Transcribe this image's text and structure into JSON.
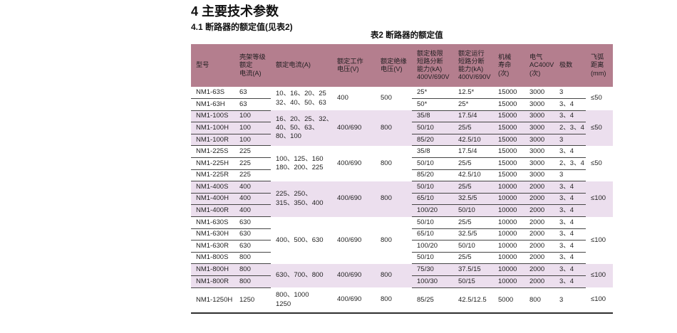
{
  "page": {
    "title": "4 主要技术参数",
    "subtitle": "4.1 断路器的额定值(见表2)",
    "table_caption": "表2 断路器的额定值"
  },
  "table": {
    "header_bg": "#b47e8e",
    "shade_bg": "#ecdfee",
    "columns": [
      "型号",
      "壳架等级\n额定\n电流(A)",
      "额定电流(A)",
      "额定工作\n电压(V)",
      "额定绝缘\n电压(V)",
      "额定极限\n短路分断\n能力(kA)\n400V/690V",
      "额定运行\n短路分断\n能力(kA)\n400V/690V",
      "机械\n寿命\n(次)",
      "电气\nAC400V\n(次)",
      "极数",
      "飞弧\n距离\n(mm)"
    ],
    "groups": [
      {
        "shade": false,
        "rated_current": "10、16、20、25\n32、40、50、63",
        "working_voltage": "400",
        "insulation_voltage": "500",
        "arc_distance": "≤50",
        "rows": [
          {
            "model": "NM1-63S",
            "frame": "63",
            "ultimate": "25*",
            "service": "12.5*",
            "mech": "15000",
            "elec": "3000",
            "poles": "3"
          },
          {
            "model": "NM1-63H",
            "frame": "63",
            "ultimate": "50*",
            "service": "25*",
            "mech": "15000",
            "elec": "3000",
            "poles": "3、4"
          }
        ]
      },
      {
        "shade": true,
        "rated_current": "16、20、25、32、\n40、50、63、\n80、100",
        "working_voltage": "400/690",
        "insulation_voltage": "800",
        "arc_distance": "≤50",
        "rows": [
          {
            "model": "NM1-100S",
            "frame": "100",
            "ultimate": "35/8",
            "service": "17.5/4",
            "mech": "15000",
            "elec": "3000",
            "poles": "3、4"
          },
          {
            "model": "NM1-100H",
            "frame": "100",
            "ultimate": "50/10",
            "service": "25/5",
            "mech": "15000",
            "elec": "3000",
            "poles": "2、3、4"
          },
          {
            "model": "NM1-100R",
            "frame": "100",
            "ultimate": "85/20",
            "service": "42.5/10",
            "mech": "15000",
            "elec": "3000",
            "poles": "3"
          }
        ]
      },
      {
        "shade": false,
        "rated_current": "100、125、160\n180、200、225",
        "working_voltage": "400/690",
        "insulation_voltage": "800",
        "arc_distance": "≤50",
        "rows": [
          {
            "model": "NM1-225S",
            "frame": "225",
            "ultimate": "35/8",
            "service": "17.5/4",
            "mech": "15000",
            "elec": "3000",
            "poles": "3、4"
          },
          {
            "model": "NM1-225H",
            "frame": "225",
            "ultimate": "50/10",
            "service": "25/5",
            "mech": "15000",
            "elec": "3000",
            "poles": "2、3、4"
          },
          {
            "model": "NM1-225R",
            "frame": "225",
            "ultimate": "85/20",
            "service": "42.5/10",
            "mech": "15000",
            "elec": "3000",
            "poles": "3"
          }
        ]
      },
      {
        "shade": true,
        "rated_current": "225、250、\n315、350、400",
        "working_voltage": "400/690",
        "insulation_voltage": "800",
        "arc_distance": "≤100",
        "rows": [
          {
            "model": "NM1-400S",
            "frame": "400",
            "ultimate": "50/10",
            "service": "25/5",
            "mech": "10000",
            "elec": "2000",
            "poles": "3、4"
          },
          {
            "model": "NM1-400H",
            "frame": "400",
            "ultimate": "65/10",
            "service": "32.5/5",
            "mech": "10000",
            "elec": "2000",
            "poles": "3、4"
          },
          {
            "model": "NM1-400R",
            "frame": "400",
            "ultimate": "100/20",
            "service": "50/10",
            "mech": "10000",
            "elec": "2000",
            "poles": "3、4"
          }
        ]
      },
      {
        "shade": false,
        "rated_current": "400、500、630",
        "working_voltage": "400/690",
        "insulation_voltage": "800",
        "arc_distance": "≤100",
        "rows": [
          {
            "model": "NM1-630S",
            "frame": "630",
            "ultimate": "50/10",
            "service": "25/5",
            "mech": "10000",
            "elec": "2000",
            "poles": "3、4"
          },
          {
            "model": "NM1-630H",
            "frame": "630",
            "ultimate": "65/10",
            "service": "32.5/5",
            "mech": "10000",
            "elec": "2000",
            "poles": "3、4"
          },
          {
            "model": "NM1-630R",
            "frame": "630",
            "ultimate": "100/20",
            "service": "50/10",
            "mech": "10000",
            "elec": "2000",
            "poles": "3、4"
          },
          {
            "model": "NM1-800S",
            "frame": "800",
            "ultimate": "50/10",
            "service": "25/5",
            "mech": "10000",
            "elec": "2000",
            "poles": "3、4"
          }
        ]
      },
      {
        "shade": true,
        "rated_current": "630、700、800",
        "working_voltage": "400/690",
        "insulation_voltage": "800",
        "arc_distance": "≤100",
        "rows": [
          {
            "model": "NM1-800H",
            "frame": "800",
            "ultimate": "75/30",
            "service": "37.5/15",
            "mech": "10000",
            "elec": "2000",
            "poles": "3、4"
          },
          {
            "model": "NM1-800R",
            "frame": "800",
            "ultimate": "100/30",
            "service": "50/15",
            "mech": "10000",
            "elec": "2000",
            "poles": "3、4"
          }
        ]
      },
      {
        "shade": false,
        "rated_current": "800、1000\n1250",
        "working_voltage": "400/690",
        "insulation_voltage": "800",
        "arc_distance": "≤100",
        "rows": [
          {
            "model": "NM1-1250H",
            "frame": "1250",
            "ultimate": "85/25",
            "service": "42.5/12.5",
            "mech": "5000",
            "elec": "800",
            "poles": "3"
          }
        ]
      }
    ]
  }
}
